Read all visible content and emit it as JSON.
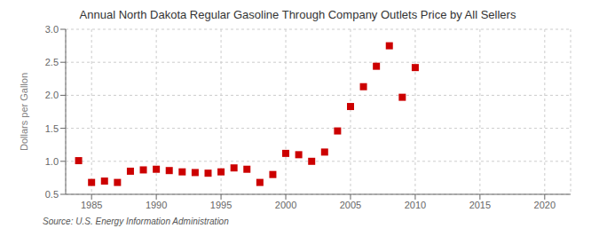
{
  "chart_data": {
    "type": "scatter",
    "title": "Annual North Dakota Regular Gasoline Through Company Outlets Price by All Sellers",
    "ylabel": "Dollars per Gallon",
    "annotations": [
      "Source: U.S. Energy Information Administration"
    ],
    "x": [
      1984,
      1985,
      1986,
      1987,
      1988,
      1989,
      1990,
      1991,
      1992,
      1993,
      1994,
      1995,
      1996,
      1997,
      1998,
      1999,
      2000,
      2001,
      2002,
      2003,
      2004,
      2005,
      2006,
      2007,
      2008,
      2009,
      2010
    ],
    "values": [
      1.01,
      0.68,
      0.7,
      0.68,
      0.85,
      0.87,
      0.88,
      0.86,
      0.84,
      0.83,
      0.82,
      0.84,
      0.9,
      0.88,
      0.68,
      0.8,
      1.12,
      1.1,
      1.0,
      1.14,
      1.46,
      1.83,
      2.13,
      2.44,
      2.75,
      1.97,
      2.42
    ],
    "color": "#CC0000",
    "marker": "square",
    "xlim": [
      1983,
      2022
    ],
    "ylim": [
      0.5,
      3.0
    ],
    "xticks": [
      1985,
      1990,
      1995,
      2000,
      2005,
      2010,
      2015,
      2020
    ],
    "yticks": [
      0.5,
      {
        "value": 1.0,
        "label": "1.0"
      },
      1.5,
      {
        "value": 2.0,
        "label": "2.0"
      },
      2.5,
      {
        "value": 3.0,
        "label": "3.0"
      }
    ],
    "grid": true
  }
}
